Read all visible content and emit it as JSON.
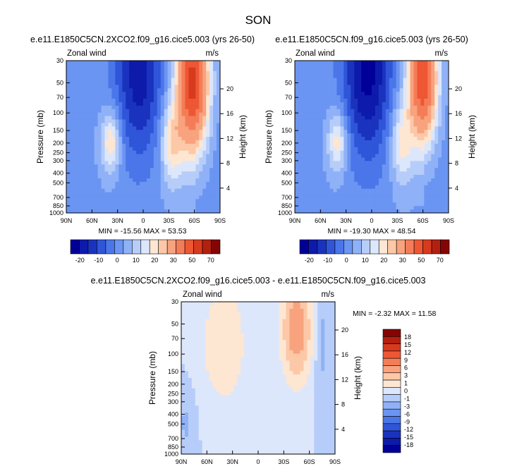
{
  "title": "SON",
  "chart_data": [
    {
      "type": "heatmap",
      "title": "e.e11.E1850C5CN.2XCO2.f09_g16.cice5.003 (yrs 26-50)",
      "left_label": "Zonal wind",
      "right_label": "m/s",
      "ylabel": "Pressure (mb)",
      "ylabel_right": "Height (km)",
      "x_ticks": [
        "90N",
        "60N",
        "30N",
        "0",
        "30S",
        "60S",
        "90S"
      ],
      "y_ticks": [
        "30",
        "50",
        "70",
        "100",
        "150",
        "200",
        "250",
        "300",
        "400",
        "500",
        "700",
        "850",
        "1000"
      ],
      "height_ticks": [
        "20",
        "16",
        "12",
        "8",
        "4"
      ],
      "stats": "MIN = -15.56  MAX = 53.53",
      "min": -15.56,
      "max": 53.53,
      "colorbar_labels": [
        "-20",
        "-10",
        "0",
        "10",
        "20",
        "30",
        "50",
        "70"
      ],
      "jets": [
        {
          "lat": -58,
          "level_log": 1.7,
          "sigma_lat": 13,
          "sigma_lev": 0.48,
          "amplitude": 60
        },
        {
          "lat": 38,
          "level_log": 2.29,
          "sigma_lat": 8,
          "sigma_lev": 0.22,
          "amplitude": 22
        },
        {
          "lat": -33,
          "level_log": 2.3,
          "sigma_lat": 9,
          "sigma_lev": 0.3,
          "amplitude": 20
        },
        {
          "lat": 5,
          "level_log": 1.6,
          "sigma_lat": 20,
          "sigma_lev": 0.6,
          "amplitude": -22
        }
      ]
    },
    {
      "type": "heatmap",
      "title": "e.e11.E1850C5CN.f09_g16.cice5.003 (yrs 26-50)",
      "left_label": "Zonal wind",
      "right_label": "m/s",
      "ylabel": "Pressure (mb)",
      "ylabel_right": "Height (km)",
      "x_ticks": [
        "90N",
        "60N",
        "30N",
        "0",
        "30S",
        "60S",
        "90S"
      ],
      "y_ticks": [
        "30",
        "50",
        "70",
        "100",
        "150",
        "200",
        "250",
        "300",
        "400",
        "500",
        "700",
        "850",
        "1000"
      ],
      "height_ticks": [
        "20",
        "16",
        "12",
        "8",
        "4"
      ],
      "stats": "MIN = -19.30  MAX = 48.54",
      "min": -19.3,
      "max": 48.54,
      "colorbar_labels": [
        "-20",
        "-10",
        "0",
        "10",
        "20",
        "30",
        "50",
        "70"
      ],
      "jets": [
        {
          "lat": -60,
          "level_log": 1.65,
          "sigma_lat": 12,
          "sigma_lev": 0.45,
          "amplitude": 55
        },
        {
          "lat": 40,
          "level_log": 2.29,
          "sigma_lat": 8,
          "sigma_lev": 0.22,
          "amplitude": 20
        },
        {
          "lat": -35,
          "level_log": 2.3,
          "sigma_lat": 9,
          "sigma_lev": 0.3,
          "amplitude": 18
        },
        {
          "lat": 5,
          "level_log": 1.6,
          "sigma_lat": 20,
          "sigma_lev": 0.6,
          "amplitude": -26
        }
      ]
    },
    {
      "type": "heatmap",
      "title": "e.e11.E1850C5CN.2XCO2.f09_g16.cice5.003 - e.e11.E1850C5CN.f09_g16.cice5.003",
      "left_label": "Zonal wind",
      "right_label": "m/s",
      "ylabel": "Pressure (mb)",
      "ylabel_right": "Height (km)",
      "x_ticks": [
        "90N",
        "60N",
        "30N",
        "0",
        "30S",
        "60S",
        "90S"
      ],
      "y_ticks": [
        "30",
        "50",
        "70",
        "100",
        "150",
        "200",
        "250",
        "300",
        "400",
        "500",
        "700",
        "850",
        "1000"
      ],
      "height_ticks": [
        "20",
        "16",
        "12",
        "8",
        "4"
      ],
      "stats": "MIN = -2.32  MAX = 11.58",
      "min": -2.32,
      "max": 11.58,
      "colorbar_labels": [
        "18",
        "15",
        "12",
        "9",
        "6",
        "3",
        "1",
        "0",
        "-1",
        "-3",
        "-6",
        "-9",
        "-12",
        "-15",
        "-18"
      ],
      "jets": [
        {
          "lat": -45,
          "level_log": 1.75,
          "sigma_lat": 10,
          "sigma_lev": 0.3,
          "amplitude": 9
        },
        {
          "lat": 40,
          "level_log": 1.9,
          "sigma_lat": 15,
          "sigma_lev": 0.35,
          "amplitude": 3
        },
        {
          "lat": -75,
          "level_log": 1.9,
          "sigma_lat": 5,
          "sigma_lev": 0.3,
          "amplitude": -1.5
        },
        {
          "lat": 85,
          "level_log": 2.7,
          "sigma_lat": 6,
          "sigma_lev": 0.2,
          "amplitude": -1.2
        }
      ]
    }
  ],
  "colors": {
    "levels_top": [
      "#000099",
      "#0d1aab",
      "#1a33be",
      "#2f55d9",
      "#4a76ea",
      "#6b95f2",
      "#8fb1f7",
      "#b7cdf9",
      "#dde7fb",
      "#fde6d2",
      "#fcc8a7",
      "#f8a27e",
      "#f47d58",
      "#ee5734",
      "#d83a1e",
      "#b32010",
      "#850505"
    ],
    "levels_diff": [
      "#000099",
      "#0d1aab",
      "#1a33be",
      "#2f55d9",
      "#4a76ea",
      "#6b95f2",
      "#8fb1f7",
      "#b7cdf9",
      "#dde7fb",
      "#fde6d2",
      "#fcc8a7",
      "#f8a27e",
      "#f47d58",
      "#ee5734",
      "#d83a1e",
      "#b32010",
      "#850505"
    ]
  }
}
